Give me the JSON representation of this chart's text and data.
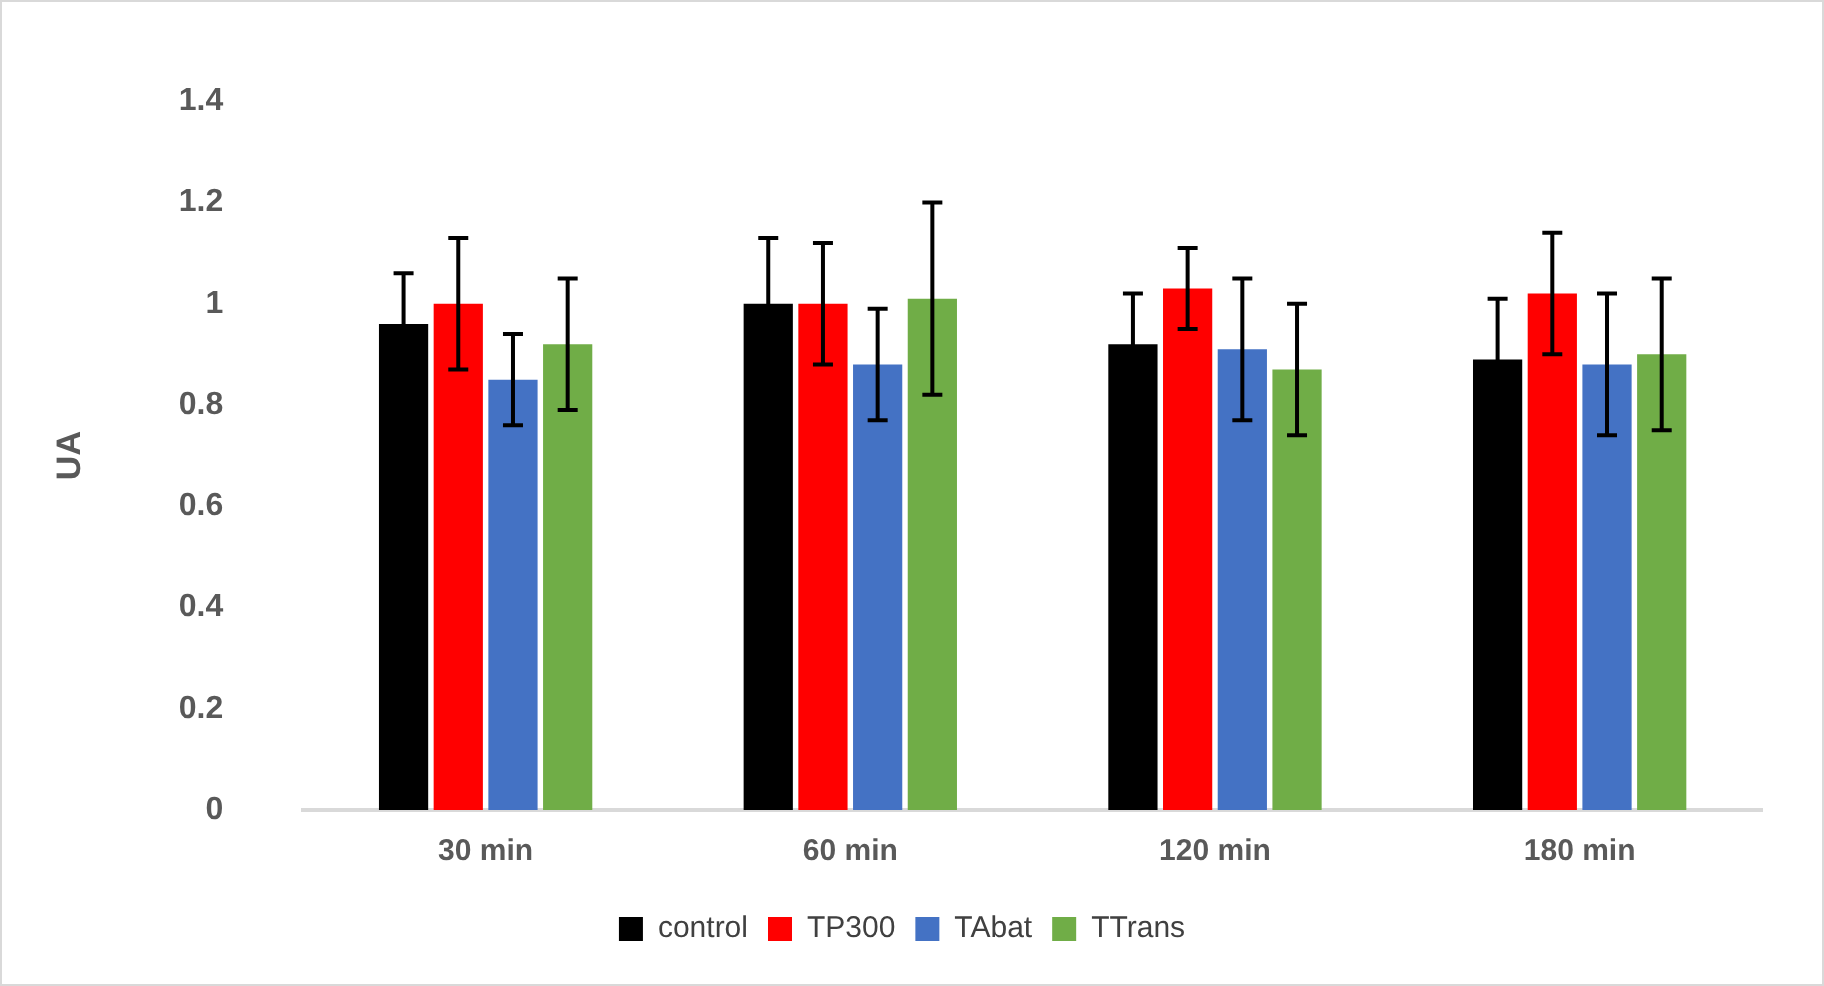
{
  "chart_data": {
    "type": "bar",
    "ylabel": "UA",
    "categories": [
      "30 min",
      "60 min",
      "120 min",
      "180 min"
    ],
    "series": [
      {
        "name": "control",
        "color": "#000000",
        "values": [
          0.96,
          1.0,
          0.92,
          0.89
        ],
        "errors": [
          0.1,
          0.13,
          0.1,
          0.12
        ]
      },
      {
        "name": "TP300",
        "color": "#ff0000",
        "values": [
          1.0,
          1.0,
          1.03,
          1.02
        ],
        "errors": [
          0.13,
          0.12,
          0.08,
          0.12
        ]
      },
      {
        "name": "TAbat",
        "color": "#4472c4",
        "values": [
          0.85,
          0.88,
          0.91,
          0.88
        ],
        "errors": [
          0.09,
          0.11,
          0.14,
          0.14
        ]
      },
      {
        "name": "TTrans",
        "color": "#70ad47",
        "values": [
          0.92,
          1.01,
          0.87,
          0.9
        ],
        "errors": [
          0.13,
          0.19,
          0.13,
          0.15
        ]
      }
    ],
    "ylim": [
      0,
      1.4
    ],
    "yticks": [
      0,
      0.2,
      0.4,
      0.6,
      0.8,
      1,
      1.2,
      1.4
    ],
    "grid": false,
    "legend": "bottom"
  }
}
